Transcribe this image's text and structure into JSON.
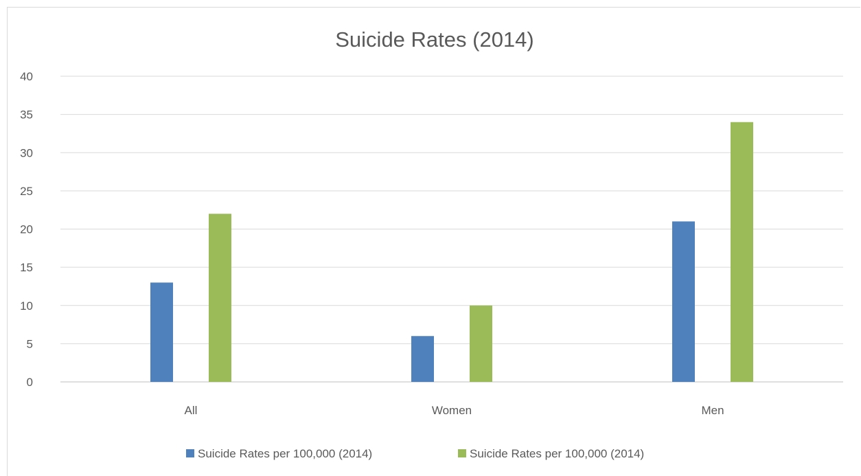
{
  "chart_data": {
    "type": "bar",
    "title": "Suicide Rates (2014)",
    "xlabel": "",
    "ylabel": "",
    "categories": [
      "All",
      "Women",
      "Men"
    ],
    "series": [
      {
        "name": "Suicide Rates per 100,000 (2014)",
        "color": "#4f81bd",
        "values": [
          13,
          6,
          21
        ]
      },
      {
        "name": "Suicide Rates per 100,000 (2014)",
        "color": "#9bbb59",
        "values": [
          22,
          10,
          34
        ]
      }
    ],
    "ylim": [
      0,
      40
    ],
    "yticks": [
      0,
      5,
      10,
      15,
      20,
      25,
      30,
      35,
      40
    ],
    "grid": true,
    "legend": "bottom"
  }
}
